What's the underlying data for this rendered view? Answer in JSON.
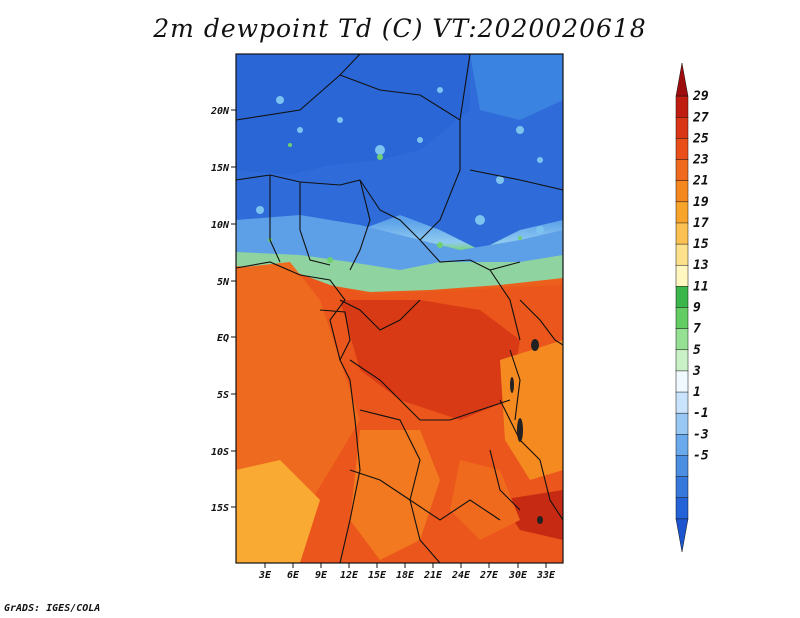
{
  "title": "2m dewpoint Td (C) VT:2020020618",
  "footer": "GrADS: IGES/COLA",
  "map": {
    "lat_labels": [
      "20N",
      "15N",
      "10N",
      "5N",
      "EQ",
      "5S",
      "10S",
      "15S"
    ],
    "lon_labels": [
      "3E",
      "6E",
      "9E",
      "12E",
      "15E",
      "18E",
      "21E",
      "24E",
      "27E",
      "30E",
      "33E"
    ]
  },
  "colorbar": {
    "labels": [
      "29",
      "27",
      "25",
      "23",
      "21",
      "19",
      "17",
      "15",
      "13",
      "11",
      "9",
      "7",
      "5",
      "3",
      "1",
      "-1",
      "-3",
      "-5"
    ],
    "colors": [
      "#9e0d0d",
      "#c01c10",
      "#d93516",
      "#ea4f1a",
      "#f06a1d",
      "#f5871f",
      "#f8a42a",
      "#fbc253",
      "#fde08c",
      "#fff6c0",
      "#3ab64a",
      "#63cc63",
      "#95e092",
      "#caf0c8",
      "#f0f9ff",
      "#c8e3fb",
      "#98c7f4",
      "#6aa9ec",
      "#4b8ee2",
      "#3677dc",
      "#2463d7",
      "#1d55cf"
    ]
  }
}
